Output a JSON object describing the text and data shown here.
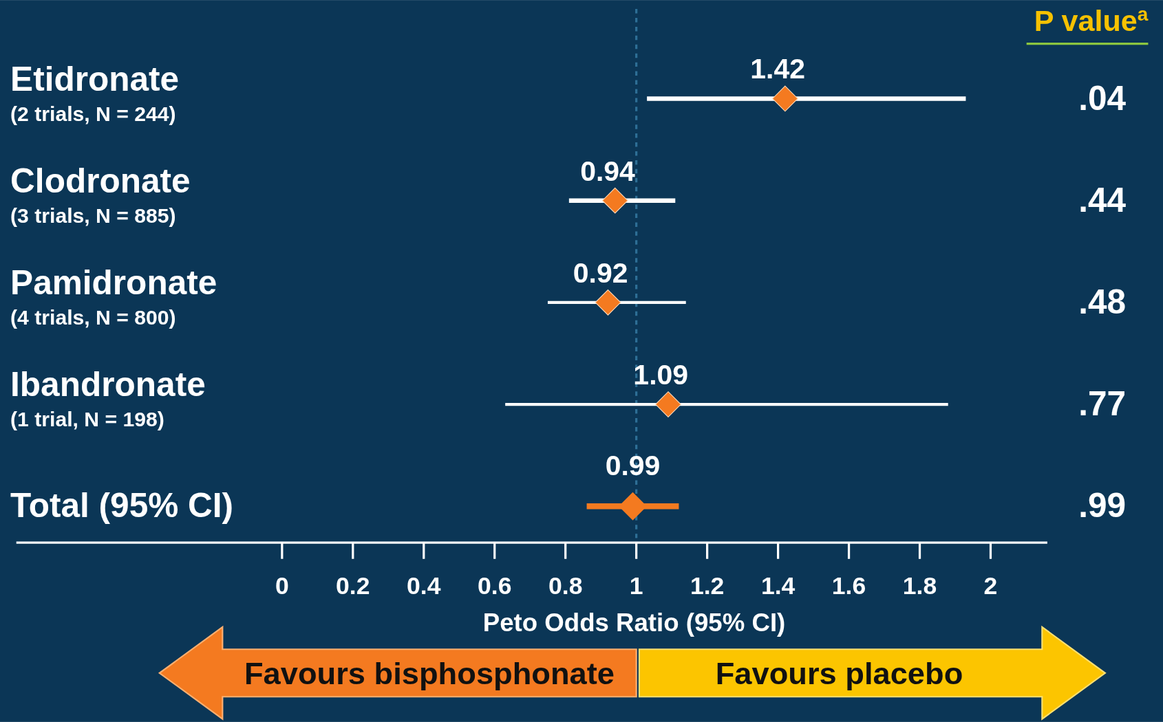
{
  "chart_data": {
    "type": "scatter",
    "orientation": "horizontal",
    "xlabel": "Peto Odds Ratio (95% CI)",
    "categories": [
      "Etidronate\n(2 trials, N = 244)",
      "Clodronate\n(3 trials, N = 885)",
      "Pamidronate\n(4 trials, N = 800)",
      "Ibandronate\n(1 trial, N = 198)",
      "Total (95% CI)"
    ],
    "series": [
      {
        "color": "#f47a20",
        "values": [
          1.42,
          0.94,
          0.92,
          1.09,
          0.99
        ],
        "errors": [
          [
            1.03,
            1.93
          ],
          [
            0.81,
            1.11
          ],
          [
            0.75,
            1.14
          ],
          [
            0.63,
            1.88
          ],
          [
            0.86,
            1.12
          ]
        ]
      }
    ],
    "data_labels": true,
    "marker": "diamond",
    "xlim": [
      -0.75,
      2.16
    ],
    "xticks": [
      0,
      0.2,
      0.4,
      0.6,
      0.8,
      1,
      1.2,
      1.4,
      1.6,
      1.8,
      2
    ],
    "ref_lines": [
      {
        "axis": "x",
        "value": 1,
        "color": "#2e6f96",
        "line_style": "dashed"
      }
    ],
    "annotations": [
      "P value$^{a}$",
      ".04",
      ".44",
      ".48",
      ".77",
      ".99",
      "Favours bisphosphonate",
      "Favours placebo"
    ]
  }
}
